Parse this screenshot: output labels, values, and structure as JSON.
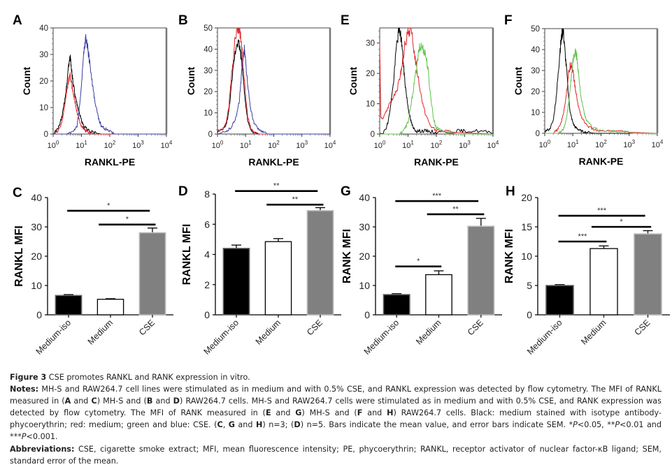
{
  "figure": {
    "panels": [
      {
        "id": "A",
        "kind": "histogram",
        "ylabel": "Count",
        "xlabel": "RANKL-PE"
      },
      {
        "id": "B",
        "kind": "histogram",
        "ylabel": "Count",
        "xlabel": "RANKL-PE"
      },
      {
        "id": "E",
        "kind": "histogram",
        "ylabel": "Count",
        "xlabel": "RANK-PE"
      },
      {
        "id": "F",
        "kind": "histogram",
        "ylabel": "Count",
        "xlabel": "RANK-PE"
      },
      {
        "id": "C",
        "kind": "bar",
        "ylabel": "RANKL MFI"
      },
      {
        "id": "D",
        "kind": "bar",
        "ylabel": "RANKL MFI"
      },
      {
        "id": "G",
        "kind": "bar",
        "ylabel": "RANK MFI"
      },
      {
        "id": "H",
        "kind": "bar",
        "ylabel": "RANK MFI"
      }
    ],
    "colors": {
      "isotype": "#000000",
      "medium": "#e0262b",
      "cse_blue": "#3a3ea0",
      "cse_green": "#5cc24a",
      "bar_black": "#000000",
      "bar_white": "#ffffff",
      "bar_gray": "#808080"
    }
  },
  "chart_data": [
    {
      "panel": "A",
      "type": "line",
      "title": "",
      "xlabel": "RANKL-PE",
      "ylabel": "Count",
      "xscale": "log",
      "xlim": [
        1,
        10000
      ],
      "ylim": [
        0,
        40
      ],
      "xticks": [
        "10^0",
        "10^1",
        "10^2",
        "10^3",
        "10^4"
      ],
      "yticks": [
        0,
        10,
        20,
        30,
        40
      ],
      "series": [
        {
          "name": "Medium-iso (black)",
          "color": "#000000",
          "x": [
            1,
            1.5,
            2,
            2.5,
            3,
            3.5,
            4,
            4.5,
            5,
            6,
            7,
            8,
            10,
            12,
            15,
            20,
            30,
            50
          ],
          "y": [
            0,
            2,
            6,
            12,
            18,
            26,
            29,
            24,
            20,
            14,
            11,
            9,
            5,
            3,
            2,
            1,
            0.5,
            0
          ]
        },
        {
          "name": "Medium (red)",
          "color": "#e0262b",
          "x": [
            1,
            1.5,
            2,
            2.5,
            3,
            3.5,
            4,
            4.5,
            5,
            6,
            7,
            8,
            10,
            12,
            15,
            20,
            30,
            50
          ],
          "y": [
            0,
            1,
            4,
            10,
            16,
            20,
            22,
            19,
            16,
            12,
            8,
            6,
            3,
            2,
            1,
            0.5,
            0,
            0
          ]
        },
        {
          "name": "CSE (blue)",
          "color": "#3a3ea0",
          "x": [
            1,
            3,
            5,
            7,
            8,
            10,
            12,
            14,
            16,
            18,
            20,
            25,
            30,
            40,
            50,
            70,
            100,
            150,
            300
          ],
          "y": [
            0,
            0,
            1,
            3,
            8,
            18,
            30,
            36,
            34,
            30,
            26,
            18,
            12,
            6,
            3,
            2,
            1,
            0,
            0
          ]
        }
      ]
    },
    {
      "panel": "B",
      "type": "line",
      "title": "",
      "xlabel": "RANKL-PE",
      "ylabel": "Count",
      "xscale": "log",
      "xlim": [
        1,
        10000
      ],
      "ylim": [
        0,
        50
      ],
      "xticks": [
        "10^0",
        "10^1",
        "10^2",
        "10^3",
        "10^4"
      ],
      "yticks": [
        0,
        10,
        20,
        30,
        40,
        50
      ],
      "series": [
        {
          "name": "Medium-iso (black)",
          "color": "#000000",
          "x": [
            1,
            1.5,
            2,
            2.5,
            3,
            4,
            5,
            6,
            7,
            8,
            10,
            12,
            15,
            20,
            30
          ],
          "y": [
            1,
            2,
            4,
            10,
            20,
            36,
            44,
            42,
            36,
            28,
            14,
            6,
            2,
            0.5,
            0
          ]
        },
        {
          "name": "Medium (red)",
          "color": "#e0262b",
          "x": [
            1,
            1.5,
            2,
            2.5,
            3,
            4,
            5,
            6,
            7,
            8,
            10,
            12,
            15,
            20,
            30
          ],
          "y": [
            2,
            2,
            5,
            12,
            24,
            42,
            50,
            50,
            44,
            34,
            18,
            8,
            3,
            1,
            0
          ]
        },
        {
          "name": "CSE (blue)",
          "color": "#3a3ea0",
          "x": [
            1,
            2,
            3,
            4,
            5,
            6,
            7,
            8,
            9,
            10,
            12,
            15,
            20,
            30,
            40,
            60
          ],
          "y": [
            0,
            1,
            3,
            6,
            10,
            16,
            26,
            36,
            40,
            34,
            22,
            12,
            5,
            2,
            1,
            0
          ]
        }
      ]
    },
    {
      "panel": "E",
      "type": "line",
      "title": "",
      "xlabel": "RANK-PE",
      "ylabel": "Count",
      "xscale": "log",
      "xlim": [
        1,
        10000
      ],
      "ylim": [
        0,
        35
      ],
      "xticks": [
        "10^0",
        "10^1",
        "10^2",
        "10^3",
        "10^4"
      ],
      "yticks": [
        0,
        10,
        20,
        30
      ],
      "series": [
        {
          "name": "Medium-iso (black)",
          "color": "#000000",
          "x": [
            1,
            1.5,
            2,
            3,
            4,
            5,
            6,
            7,
            8,
            10,
            12,
            15,
            20,
            30,
            50,
            100,
            500,
            1000,
            3000,
            8000
          ],
          "y": [
            0,
            1,
            4,
            16,
            30,
            35,
            30,
            22,
            16,
            9,
            5,
            2,
            1,
            1,
            1,
            0.5,
            1,
            1,
            1,
            0.5
          ]
        },
        {
          "name": "Medium (red)",
          "color": "#e0262b",
          "x": [
            1,
            1.1,
            1.5,
            2,
            3,
            4,
            5,
            6,
            8,
            10,
            12,
            15,
            20,
            30,
            40,
            60,
            100,
            200,
            400
          ],
          "y": [
            30,
            5,
            6,
            9,
            12,
            14,
            18,
            22,
            30,
            33,
            35,
            30,
            22,
            12,
            7,
            3,
            1,
            1,
            0.5
          ]
        },
        {
          "name": "CSE (green)",
          "color": "#5cc24a",
          "x": [
            1,
            5,
            8,
            10,
            12,
            15,
            20,
            25,
            30,
            40,
            50,
            60,
            80,
            100,
            200,
            500
          ],
          "y": [
            0,
            0,
            2,
            4,
            8,
            14,
            22,
            28,
            29,
            27,
            22,
            14,
            5,
            2,
            1,
            0
          ]
        }
      ]
    },
    {
      "panel": "F",
      "type": "line",
      "title": "",
      "xlabel": "RANK-PE",
      "ylabel": "Count",
      "xscale": "log",
      "xlim": [
        1,
        10000
      ],
      "ylim": [
        0,
        50
      ],
      "xticks": [
        "10^0",
        "10^1",
        "10^2",
        "10^3",
        "10^4"
      ],
      "yticks": [
        0,
        10,
        20,
        30,
        40,
        50
      ],
      "series": [
        {
          "name": "Medium-iso (black)",
          "color": "#000000",
          "x": [
            1,
            1.5,
            2,
            2.5,
            3,
            3.5,
            4,
            4.5,
            5,
            6,
            7,
            8,
            10,
            12,
            15,
            20,
            30,
            60
          ],
          "y": [
            1,
            2,
            6,
            16,
            28,
            40,
            46,
            50,
            42,
            30,
            18,
            10,
            5,
            3,
            2,
            1,
            0.5,
            0
          ]
        },
        {
          "name": "Medium (red)",
          "color": "#e0262b",
          "x": [
            1,
            2,
            3,
            4,
            5,
            6,
            7,
            8,
            9,
            10,
            12,
            15,
            20,
            30,
            50,
            100,
            300,
            1000
          ],
          "y": [
            0,
            0,
            2,
            6,
            12,
            20,
            28,
            32,
            33,
            30,
            22,
            14,
            8,
            4,
            2,
            1,
            1,
            0.5
          ]
        },
        {
          "name": "CSE (green)",
          "color": "#5cc24a",
          "x": [
            1,
            3,
            4,
            5,
            6,
            7,
            8,
            10,
            12,
            14,
            16,
            20,
            25,
            30,
            50,
            100,
            300,
            1500
          ],
          "y": [
            0,
            0,
            1,
            3,
            8,
            14,
            22,
            34,
            39,
            36,
            28,
            16,
            10,
            6,
            3,
            1,
            1,
            0
          ]
        }
      ]
    },
    {
      "panel": "C",
      "type": "bar",
      "title": "",
      "xlabel": "",
      "ylabel": "RANKL MFI",
      "ylim": [
        0,
        40
      ],
      "yticks": [
        0,
        10,
        20,
        30,
        40
      ],
      "categories": [
        "Medium-iso",
        "Medium",
        "CSE"
      ],
      "values": [
        6.6,
        5.3,
        28.0
      ],
      "errors": [
        0.3,
        0.2,
        1.6
      ],
      "fills": [
        "#000000",
        "#ffffff",
        "#808080"
      ],
      "significance": [
        {
          "from": 0,
          "to": 2,
          "label": "*",
          "y": 35.5
        },
        {
          "from": 1,
          "to": 2,
          "label": "*",
          "y": 30.8
        }
      ]
    },
    {
      "panel": "D",
      "type": "bar",
      "title": "",
      "xlabel": "",
      "ylabel": "RANKL MFI",
      "ylim": [
        0,
        8
      ],
      "yticks": [
        0,
        2,
        4,
        6,
        8
      ],
      "categories": [
        "Medium-iso",
        "Medium",
        "CSE"
      ],
      "values": [
        4.4,
        4.85,
        6.9
      ],
      "errors": [
        0.22,
        0.2,
        0.2
      ],
      "fills": [
        "#000000",
        "#ffffff",
        "#808080"
      ],
      "significance": [
        {
          "from": 0,
          "to": 2,
          "label": "**",
          "y": 8.2
        },
        {
          "from": 1,
          "to": 2,
          "label": "**",
          "y": 7.3
        }
      ]
    },
    {
      "panel": "G",
      "type": "bar",
      "title": "",
      "xlabel": "",
      "ylabel": "RANK MFI",
      "ylim": [
        0,
        40
      ],
      "yticks": [
        0,
        10,
        20,
        30,
        40
      ],
      "categories": [
        "Medium-iso",
        "Medium",
        "CSE"
      ],
      "values": [
        6.9,
        13.7,
        30.2
      ],
      "errors": [
        0.3,
        1.3,
        2.7
      ],
      "fills": [
        "#000000",
        "#ffffff",
        "#808080"
      ],
      "significance": [
        {
          "from": 0,
          "to": 2,
          "label": "***",
          "y": 38.8
        },
        {
          "from": 1,
          "to": 2,
          "label": "**",
          "y": 34.3
        },
        {
          "from": 0,
          "to": 1,
          "label": "*",
          "y": 16.5
        }
      ]
    },
    {
      "panel": "H",
      "type": "bar",
      "title": "",
      "xlabel": "",
      "ylabel": "RANK MFI",
      "ylim": [
        0,
        20
      ],
      "yticks": [
        0,
        5,
        10,
        15,
        20
      ],
      "categories": [
        "Medium-iso",
        "Medium",
        "CSE"
      ],
      "values": [
        5.0,
        11.3,
        13.8
      ],
      "errors": [
        0.15,
        0.45,
        0.55
      ],
      "fills": [
        "#000000",
        "#ffffff",
        "#808080"
      ],
      "significance": [
        {
          "from": 0,
          "to": 2,
          "label": "***",
          "y": 16.9
        },
        {
          "from": 1,
          "to": 2,
          "label": "*",
          "y": 15.0
        },
        {
          "from": 0,
          "to": 1,
          "label": "***",
          "y": 12.5
        }
      ]
    }
  ],
  "caption": {
    "figure_label": "Figure 3",
    "title": " CSE promotes RANKL and RANK expression in vitro.",
    "notes_label": "Notes:",
    "notes_parts": [
      {
        "t": " MH-S and RAW264.7 cell lines were stimulated as in medium and with 0.5% CSE, and RANKL expression was detected by flow cytometry. The MFI of RANKL measured in (",
        "b": false
      },
      {
        "t": "A",
        "b": true
      },
      {
        "t": " and ",
        "b": false
      },
      {
        "t": "C",
        "b": true
      },
      {
        "t": ") MH-S and (",
        "b": false
      },
      {
        "t": "B",
        "b": true
      },
      {
        "t": " and ",
        "b": false
      },
      {
        "t": "D",
        "b": true
      },
      {
        "t": ") RAW264.7 cells. MH-S and RAW264.7 cells were stimulated as in medium and with 0.5% CSE, and RANK expression was detected by flow cytometry. The MFI of RANK measured in (",
        "b": false
      },
      {
        "t": "E",
        "b": true
      },
      {
        "t": " and ",
        "b": false
      },
      {
        "t": "G",
        "b": true
      },
      {
        "t": ") MH-S and (",
        "b": false
      },
      {
        "t": "F",
        "b": true
      },
      {
        "t": " and ",
        "b": false
      },
      {
        "t": "H",
        "b": true
      },
      {
        "t": ") RAW264.7 cells. Black: medium stained with isotype antibody-phycoerythrin; red: medium; green and blue: CSE. (",
        "b": false
      },
      {
        "t": "C",
        "b": true
      },
      {
        "t": ", ",
        "b": false
      },
      {
        "t": "G",
        "b": true
      },
      {
        "t": " and ",
        "b": false
      },
      {
        "t": "H",
        "b": true
      },
      {
        "t": ") n=3; (",
        "b": false
      },
      {
        "t": "D",
        "b": true
      },
      {
        "t": ") n=5. Bars indicate the mean value, and error bars indicate SEM. *P<0.05, **P<0.01 and ***P<0.001.",
        "b": false
      }
    ],
    "abbrev_label": "Abbreviations:",
    "abbrev_text": " CSE, cigarette smoke extract; MFI, mean fluorescence intensity; PE, phycoerythrin; RANKL, receptor activator of nuclear factor-κB ligand; SEM, standard error of the mean."
  }
}
